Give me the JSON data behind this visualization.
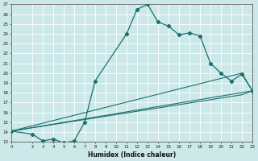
{
  "title": "",
  "xlabel": "Humidex (Indice chaleur)",
  "bg_color": "#cce8e8",
  "grid_color": "#ffffff",
  "line_color": "#1a7070",
  "ylim": [
    13,
    27
  ],
  "xlim": [
    0,
    23
  ],
  "yticks": [
    13,
    14,
    15,
    16,
    17,
    18,
    19,
    20,
    21,
    22,
    23,
    24,
    25,
    26,
    27
  ],
  "xticks": [
    0,
    2,
    3,
    4,
    5,
    6,
    7,
    8,
    9,
    10,
    11,
    12,
    13,
    14,
    15,
    16,
    17,
    18,
    19,
    20,
    21,
    22,
    23
  ],
  "line1_x": [
    0,
    2,
    3,
    4,
    5,
    6,
    7,
    8,
    11,
    12,
    13,
    14,
    15,
    16,
    17,
    18,
    19,
    20,
    21,
    22,
    23
  ],
  "line1_y": [
    14.1,
    13.8,
    13.1,
    13.3,
    12.9,
    13.1,
    15.0,
    19.2,
    24.0,
    26.5,
    27.0,
    25.2,
    24.8,
    23.9,
    24.1,
    23.8,
    21.0,
    20.0,
    19.2,
    19.9,
    18.2
  ],
  "line2_x": [
    0,
    22,
    23
  ],
  "line2_y": [
    14.1,
    20.0,
    18.2
  ],
  "line3_x": [
    0,
    22,
    23
  ],
  "line3_y": [
    14.1,
    17.8,
    18.2
  ],
  "line4_x": [
    0,
    23
  ],
  "line4_y": [
    14.1,
    18.2
  ]
}
